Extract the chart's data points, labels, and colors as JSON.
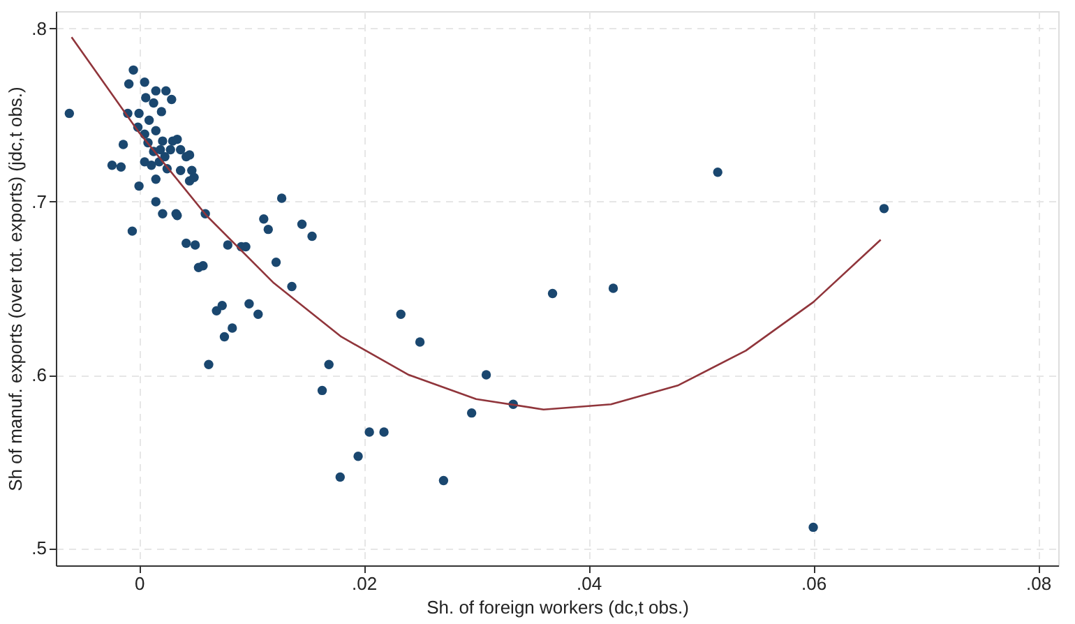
{
  "chart_data": {
    "type": "scatter",
    "xlabel": "Sh. of foreign workers (dc,t obs.)",
    "ylabel": "Sh of manuf. exports (over tot. exports) (jdc,t obs.)",
    "xlim": [
      -0.0074,
      0.0818
    ],
    "ylim": [
      0.49,
      0.81
    ],
    "xticks": [
      0,
      {
        "value": 0.02,
        "label": ".02"
      },
      {
        "value": 0.04,
        "label": ".04"
      },
      {
        "value": 0.06,
        "label": ".06"
      },
      {
        "value": 0.08,
        "label": ".08"
      }
    ],
    "yticks": [
      {
        "value": 0.5,
        "label": ".5"
      },
      {
        "value": 0.6,
        "label": ".6"
      },
      {
        "value": 0.7,
        "label": ".7"
      },
      {
        "value": 0.8,
        "label": ".8"
      }
    ],
    "grid": true,
    "marker": "circle",
    "series": [
      {
        "color": "#1a476f",
        "x": [
          -0.0062,
          -0.0024,
          -0.0016,
          -0.0014,
          -0.0006,
          0.0062,
          -0.0005,
          -0.0009,
          0.0005,
          0.0006,
          0.0015,
          0.0024,
          0.0029,
          -0.001,
          0,
          0.0009,
          0.0013,
          0.002,
          -0.0001,
          0.0005,
          0.0015,
          0.0021,
          0.003,
          0.0034,
          0.0037,
          0.0042,
          0.0045,
          0.0013,
          0.0019,
          0.0005,
          0.0011,
          0.0018,
          0.0023,
          0.0028,
          0.0025,
          0.0037,
          0.0047,
          0.0045,
          0.0049,
          0,
          0.0015,
          0.0015,
          0.0021,
          0.0033,
          0.0034,
          0.0008,
          0.0042,
          0.005,
          0.0059,
          0.0053,
          0.0057,
          0.0069,
          0.0074,
          0.0079,
          0.0076,
          0.0083,
          0.0091,
          0.0095,
          0.0098,
          0.0106,
          0.0111,
          0.0115,
          0.0122,
          0.0127,
          0.0136,
          0.0145,
          0.0154,
          0.0169,
          0.0163,
          0.0179,
          0.0195,
          0.0205,
          0.0218,
          0.0233,
          0.025,
          0.0271,
          0.0296,
          0.0309,
          0.0333,
          0.0368,
          0.0422,
          0.0515,
          0.06,
          0.0663
        ],
        "values": [
          0.751,
          0.721,
          0.72,
          0.733,
          0.683,
          0.606,
          0.776,
          0.768,
          0.769,
          0.76,
          0.764,
          0.764,
          0.759,
          0.751,
          0.751,
          0.747,
          0.757,
          0.752,
          0.743,
          0.739,
          0.741,
          0.735,
          0.735,
          0.736,
          0.73,
          0.726,
          0.727,
          0.729,
          0.73,
          0.723,
          0.721,
          0.723,
          0.726,
          0.73,
          0.719,
          0.718,
          0.718,
          0.712,
          0.714,
          0.709,
          0.713,
          0.7,
          0.693,
          0.693,
          0.692,
          0.734,
          0.676,
          0.675,
          0.693,
          0.662,
          0.663,
          0.637,
          0.64,
          0.675,
          0.622,
          0.627,
          0.674,
          0.674,
          0.641,
          0.635,
          0.69,
          0.684,
          0.665,
          0.702,
          0.651,
          0.687,
          0.68,
          0.606,
          0.591,
          0.541,
          0.553,
          0.567,
          0.567,
          0.635,
          0.619,
          0.539,
          0.578,
          0.6,
          0.583,
          0.647,
          0.65,
          0.717,
          0.512,
          0.696
        ]
      },
      {
        "type": "line",
        "color": "#90353b",
        "marker": "none",
        "line_style": "solid",
        "x": [
          -0.006,
          0,
          0.006,
          0.012,
          0.018,
          0.024,
          0.03,
          0.036,
          0.042,
          0.048,
          0.054,
          0.06,
          0.066
        ],
        "values": [
          0.795,
          0.74,
          0.692,
          0.653,
          0.622,
          0.6,
          0.586,
          0.58,
          0.583,
          0.594,
          0.614,
          0.642,
          0.678
        ]
      }
    ]
  }
}
